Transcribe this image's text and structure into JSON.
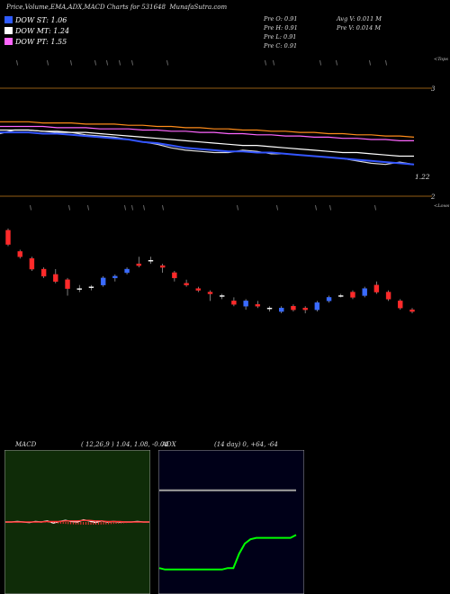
{
  "header": {
    "title": "Price,Volume,EMA,ADX,MACD Charts for 531648",
    "site": "MunafaSutra.com"
  },
  "legend": [
    {
      "label": "DOW ST: 1.06",
      "color": "#2f5bff"
    },
    {
      "label": "DOW MT: 1.24",
      "color": "#ffffff"
    },
    {
      "label": "DOW PT: 1.55",
      "color": "#ff66ff"
    }
  ],
  "price_info": {
    "open": "Pre   O: 0.91",
    "high": "Pre   H: 0.91",
    "low": "Pre   L: 0.91",
    "close": "Pre   C: 0.91",
    "avg_vol": "Avg V: 0.011 M",
    "pre_vol": "Pre   V: 0.014  M"
  },
  "panel_labels": {
    "top": "<Tops",
    "lows": "<Lows",
    "ema_last": "1.22"
  },
  "chart_data": [
    {
      "type": "line",
      "name": "price-ema",
      "yticks": [
        "3",
        "2"
      ],
      "series": [
        {
          "name": "price",
          "color": "#dddddd",
          "values": [
            1.52,
            1.55,
            1.55,
            1.54,
            1.53,
            1.53,
            1.51,
            1.5,
            1.49,
            1.47,
            1.45,
            1.43,
            1.4,
            1.38,
            1.37,
            1.36,
            1.36,
            1.38,
            1.37,
            1.35,
            1.35,
            1.34,
            1.33,
            1.32,
            1.31,
            1.29,
            1.27,
            1.26,
            1.28,
            1.26
          ]
        },
        {
          "name": "ema-fast",
          "color": "#3355ff",
          "values": [
            1.53,
            1.53,
            1.53,
            1.52,
            1.52,
            1.51,
            1.5,
            1.49,
            1.48,
            1.47,
            1.45,
            1.44,
            1.42,
            1.4,
            1.39,
            1.38,
            1.37,
            1.37,
            1.36,
            1.36,
            1.35,
            1.34,
            1.33,
            1.32,
            1.31,
            1.3,
            1.29,
            1.28,
            1.27,
            1.26
          ]
        },
        {
          "name": "ema-mid",
          "color": "#ffffff",
          "values": [
            1.55,
            1.55,
            1.55,
            1.54,
            1.54,
            1.53,
            1.53,
            1.52,
            1.51,
            1.5,
            1.49,
            1.48,
            1.47,
            1.46,
            1.45,
            1.44,
            1.43,
            1.42,
            1.42,
            1.41,
            1.4,
            1.39,
            1.38,
            1.37,
            1.36,
            1.36,
            1.35,
            1.34,
            1.33,
            1.33
          ]
        },
        {
          "name": "ema-slow",
          "color": "#ff66ff",
          "values": [
            1.58,
            1.58,
            1.58,
            1.58,
            1.57,
            1.57,
            1.57,
            1.56,
            1.56,
            1.56,
            1.55,
            1.55,
            1.54,
            1.54,
            1.53,
            1.53,
            1.52,
            1.52,
            1.51,
            1.51,
            1.5,
            1.5,
            1.49,
            1.49,
            1.48,
            1.48,
            1.47,
            1.47,
            1.46,
            1.46
          ]
        },
        {
          "name": "ema-long",
          "color": "#ff8c1a",
          "values": [
            1.62,
            1.62,
            1.62,
            1.61,
            1.61,
            1.61,
            1.6,
            1.6,
            1.6,
            1.59,
            1.59,
            1.58,
            1.58,
            1.57,
            1.57,
            1.56,
            1.56,
            1.55,
            1.55,
            1.54,
            1.54,
            1.53,
            1.53,
            1.52,
            1.52,
            1.51,
            1.51,
            1.5,
            1.5,
            1.49
          ]
        }
      ]
    },
    {
      "type": "candlestick",
      "name": "price-candles",
      "candles": [
        {
          "o": 1.62,
          "c": 1.54,
          "h": 1.63,
          "l": 1.53
        },
        {
          "o": 1.5,
          "c": 1.47,
          "h": 1.51,
          "l": 1.46
        },
        {
          "o": 1.46,
          "c": 1.4,
          "h": 1.47,
          "l": 1.39
        },
        {
          "o": 1.4,
          "c": 1.36,
          "h": 1.41,
          "l": 1.35
        },
        {
          "o": 1.37,
          "c": 1.33,
          "h": 1.4,
          "l": 1.32
        },
        {
          "o": 1.34,
          "c": 1.29,
          "h": 1.35,
          "l": 1.25
        },
        {
          "o": 1.29,
          "c": 1.29,
          "h": 1.31,
          "l": 1.27
        },
        {
          "o": 1.3,
          "c": 1.3,
          "h": 1.31,
          "l": 1.28
        },
        {
          "o": 1.31,
          "c": 1.35,
          "h": 1.36,
          "l": 1.3
        },
        {
          "o": 1.35,
          "c": 1.36,
          "h": 1.37,
          "l": 1.33
        },
        {
          "o": 1.38,
          "c": 1.4,
          "h": 1.41,
          "l": 1.37
        },
        {
          "o": 1.43,
          "c": 1.42,
          "h": 1.47,
          "l": 1.41
        },
        {
          "o": 1.45,
          "c": 1.45,
          "h": 1.47,
          "l": 1.43
        },
        {
          "o": 1.42,
          "c": 1.41,
          "h": 1.43,
          "l": 1.38
        },
        {
          "o": 1.38,
          "c": 1.35,
          "h": 1.39,
          "l": 1.33
        },
        {
          "o": 1.32,
          "c": 1.31,
          "h": 1.34,
          "l": 1.3
        },
        {
          "o": 1.29,
          "c": 1.28,
          "h": 1.3,
          "l": 1.27
        },
        {
          "o": 1.27,
          "c": 1.26,
          "h": 1.28,
          "l": 1.22
        },
        {
          "o": 1.25,
          "c": 1.25,
          "h": 1.26,
          "l": 1.23
        },
        {
          "o": 1.22,
          "c": 1.2,
          "h": 1.24,
          "l": 1.19
        },
        {
          "o": 1.19,
          "c": 1.22,
          "h": 1.23,
          "l": 1.17
        },
        {
          "o": 1.2,
          "c": 1.19,
          "h": 1.22,
          "l": 1.18
        },
        {
          "o": 1.18,
          "c": 1.18,
          "h": 1.19,
          "l": 1.16
        },
        {
          "o": 1.16,
          "c": 1.18,
          "h": 1.19,
          "l": 1.15
        },
        {
          "o": 1.19,
          "c": 1.17,
          "h": 1.2,
          "l": 1.16
        },
        {
          "o": 1.18,
          "c": 1.17,
          "h": 1.19,
          "l": 1.15
        },
        {
          "o": 1.17,
          "c": 1.21,
          "h": 1.22,
          "l": 1.16
        },
        {
          "o": 1.22,
          "c": 1.24,
          "h": 1.25,
          "l": 1.21
        },
        {
          "o": 1.25,
          "c": 1.25,
          "h": 1.26,
          "l": 1.24
        },
        {
          "o": 1.27,
          "c": 1.24,
          "h": 1.28,
          "l": 1.23
        },
        {
          "o": 1.25,
          "c": 1.29,
          "h": 1.3,
          "l": 1.24
        },
        {
          "o": 1.31,
          "c": 1.27,
          "h": 1.33,
          "l": 1.26
        },
        {
          "o": 1.27,
          "c": 1.23,
          "h": 1.28,
          "l": 1.22
        },
        {
          "o": 1.22,
          "c": 1.18,
          "h": 1.23,
          "l": 1.17
        },
        {
          "o": 1.17,
          "c": 1.16,
          "h": 1.18,
          "l": 1.15
        }
      ]
    },
    {
      "type": "line",
      "name": "macd",
      "title": "MACD",
      "params": "( 12,26,9 ) 1.04,  1.08,  -0.04",
      "series": [
        {
          "name": "macd",
          "color": "#ffffff",
          "values": [
            0,
            0,
            0.1,
            0,
            -0.1,
            0.1,
            0,
            0.2,
            -0.2,
            0.1,
            0.3,
            0.1,
            0,
            0.4,
            0.2,
            -0.1,
            0.2,
            0,
            0.1,
            0,
            0,
            0,
            0.1,
            0,
            0
          ]
        },
        {
          "name": "signal",
          "color": "#ff3333",
          "values": [
            0,
            0,
            0,
            0,
            0,
            0,
            0,
            0.1,
            0.1,
            0.1,
            0.2,
            0.2,
            0.2,
            0.3,
            0.3,
            0.2,
            0.2,
            0.1,
            0.1,
            0.1,
            0,
            0,
            0,
            0,
            0
          ]
        }
      ]
    },
    {
      "type": "line",
      "name": "adx",
      "title": "ADX",
      "params": "(14 day) 0,  +64,  -64",
      "series": [
        {
          "name": "adx",
          "color": "#00ff00",
          "values": [
            18,
            17,
            17,
            17,
            17,
            17,
            17,
            17,
            17,
            17,
            17,
            17,
            18,
            18,
            28,
            35,
            38,
            39,
            39,
            39,
            39,
            39,
            39,
            39,
            41
          ]
        },
        {
          "name": "di",
          "color": "#999999",
          "values": [
            72,
            72,
            72,
            72,
            72,
            72,
            72,
            72,
            72,
            72,
            72,
            72,
            72,
            72,
            72,
            72,
            72,
            72,
            72,
            72,
            72,
            72,
            72,
            72,
            72
          ]
        }
      ]
    }
  ]
}
